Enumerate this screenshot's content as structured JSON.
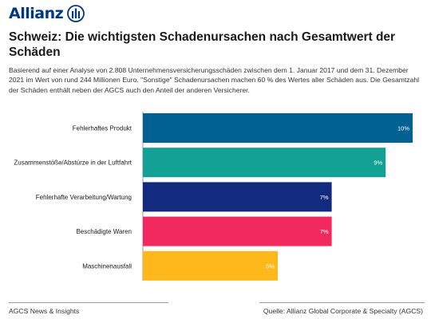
{
  "brand": {
    "logo_text": "Allianz",
    "logo_icon": "allianz-eagle-icon",
    "brand_color": "#003781"
  },
  "header": {
    "title": "Schweiz: Die wichtigsten Schadenursachen nach Gesamtwert der Schäden",
    "description": "Basierend auf einer Analyse von 2.808 Unternehmensversicherungsschäden zwischen dem 1. Januar 2017 und dem 31. Dezember 2021 im Wert von rund 244 Millionen Euro. \"Sonstige\" Schadenursachen machen 60 % des Wertes aller Schäden aus. Die Gesamtzahl der Schäden enthält neben der AGCS auch den Anteil der anderen Versicherer."
  },
  "chart_data": {
    "type": "bar",
    "orientation": "horizontal",
    "categories": [
      "Fehlerhaftes Produkt",
      "Zusammenstöße/Abstürze in der Luftfahrt",
      "Fehlerhafte Verarbeitung/Wartung",
      "Beschädigte Waren",
      "Maschinenausfall"
    ],
    "values": [
      10,
      9,
      7,
      7,
      5
    ],
    "value_labels": [
      "10%",
      "9%",
      "7%",
      "7%",
      "5%"
    ],
    "colors": [
      "#006192",
      "#13a095",
      "#122b7e",
      "#f2295e",
      "#ffb81c"
    ],
    "unit": "%",
    "xlim": [
      0,
      10
    ],
    "grid": false,
    "legend": "none"
  },
  "footer": {
    "left": "AGCS News & Insights",
    "right": "Quelle: Allianz Global Corporate & Specialty (AGCS)"
  }
}
